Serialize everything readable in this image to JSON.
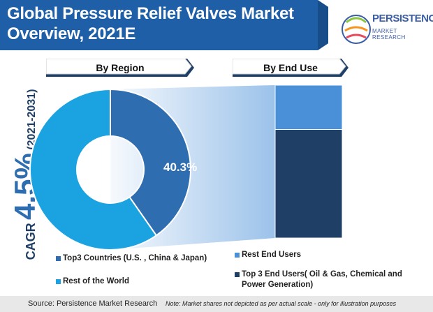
{
  "title": "Global Pressure Relief Valves Market Overview, 2021E",
  "logo": {
    "line1": "PERSISTENCE",
    "line2": "MARKET RESEARCH"
  },
  "tabs": {
    "region": "By Region",
    "end_use": "By End Use"
  },
  "cagr": {
    "word": "CAGR",
    "value": "4.5%",
    "period": "(2021-2031)"
  },
  "colors": {
    "title_bg": "#1e5fa8",
    "rest_of_world": "#1aa3e0",
    "top3_countries": "#2e6db0",
    "rest_end_users": "#4a90d9",
    "top3_end_users": "#1f3f66",
    "tab_bg": "#ffffff",
    "tab_shadow": "#1f3f66"
  },
  "chart_data": [
    {
      "type": "pie",
      "subtitle": "By Region",
      "labels": [
        "Top3 Countries (U.S. , China & Japan)",
        "Rest of the World"
      ],
      "values": [
        40.3,
        59.7
      ],
      "data_label": "40.3%",
      "donut": true
    },
    {
      "type": "bar",
      "subtitle": "By End Use",
      "stacked": true,
      "categories": [
        ""
      ],
      "series": [
        {
          "name": "Rest End Users",
          "values": [
            29
          ]
        },
        {
          "name": "Top 3 End Users( Oil & Gas, Chemical and Power Generation)",
          "values": [
            71
          ]
        }
      ]
    }
  ],
  "legend": {
    "top3_countries": "Top3 Countries (U.S. , China & Japan)",
    "rest_of_world": "Rest of the World",
    "rest_end_users": "Rest End Users",
    "top3_end_users_line1": "Top 3 End Users( Oil & Gas, Chemical and",
    "top3_end_users_line2": "Power Generation)"
  },
  "footer": {
    "source": "Source: Persistence Market Research",
    "note": "Note: Market shares not depicted as per actual scale - only for illustration purposes"
  }
}
